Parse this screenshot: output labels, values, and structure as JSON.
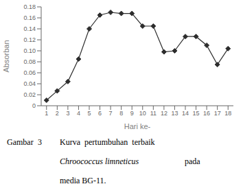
{
  "chart_data": {
    "type": "line",
    "xlabel": "Hari ke-",
    "ylabel": "Absorban",
    "x": [
      1,
      2,
      3,
      4,
      5,
      6,
      7,
      8,
      9,
      10,
      11,
      12,
      13,
      14,
      15,
      16,
      17,
      18
    ],
    "values": [
      0.01,
      0.027,
      0.044,
      0.085,
      0.14,
      0.165,
      0.17,
      0.168,
      0.168,
      0.145,
      0.145,
      0.098,
      0.1,
      0.126,
      0.126,
      0.11,
      0.075,
      0.104
    ],
    "color": "#2d2d2d",
    "marker": "diamond",
    "xlim": [
      0.5,
      18.5
    ],
    "xticks": [
      1,
      2,
      3,
      4,
      5,
      6,
      7,
      8,
      9,
      10,
      11,
      12,
      13,
      14,
      15,
      16,
      17,
      18
    ],
    "ylim": [
      0,
      0.18
    ],
    "yticks": [
      0,
      0.02,
      0.04,
      0.06,
      0.08,
      {
        "value": 0.1,
        "label": "0.10"
      },
      0.12,
      0.14,
      0.16,
      0.18
    ],
    "grid": false,
    "annotations": [
      "Gambar",
      "3",
      "Kurva  pertumbuhan  terbaik",
      "Chroococcus limneticus",
      "pada",
      "media BG-11."
    ]
  }
}
